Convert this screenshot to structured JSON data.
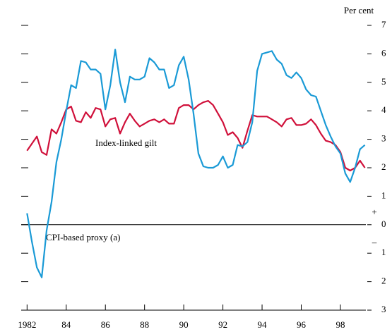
{
  "chart_data": {
    "type": "line",
    "y_axis_label": "Per cent",
    "annotations": [
      "+",
      "–"
    ],
    "xlim": [
      1981.7,
      1999.3
    ],
    "xticks": [
      {
        "value": 1982,
        "label": "1982"
      },
      {
        "value": 1984,
        "label": "84"
      },
      {
        "value": 1986,
        "label": "86"
      },
      {
        "value": 1988,
        "label": "88"
      },
      {
        "value": 1990,
        "label": "90"
      },
      {
        "value": 1992,
        "label": "92"
      },
      {
        "value": 1994,
        "label": "94"
      },
      {
        "value": 1996,
        "label": "96"
      },
      {
        "value": 1998,
        "label": "98"
      }
    ],
    "ylim": [
      -3,
      7
    ],
    "yticks": [
      7,
      6,
      5,
      4,
      3,
      2,
      1,
      0,
      {
        "value": -1,
        "label": "1"
      },
      {
        "value": -2,
        "label": "2"
      },
      {
        "value": -3,
        "label": "3"
      }
    ],
    "zero_line": true,
    "x": [
      1982,
      1982.25,
      1982.5,
      1982.75,
      1983,
      1983.25,
      1983.5,
      1983.75,
      1984,
      1984.25,
      1984.5,
      1984.75,
      1985,
      1985.25,
      1985.5,
      1985.75,
      1986,
      1986.25,
      1986.5,
      1986.75,
      1987,
      1987.25,
      1987.5,
      1987.75,
      1988,
      1988.25,
      1988.5,
      1988.75,
      1989,
      1989.25,
      1989.5,
      1989.75,
      1990,
      1990.25,
      1990.5,
      1990.75,
      1991,
      1991.25,
      1991.5,
      1991.75,
      1992,
      1992.25,
      1992.5,
      1992.75,
      1993,
      1993.25,
      1993.5,
      1993.75,
      1994,
      1994.25,
      1994.5,
      1994.75,
      1995,
      1995.25,
      1995.5,
      1995.75,
      1996,
      1996.25,
      1996.5,
      1996.75,
      1997,
      1997.25,
      1997.5,
      1997.75,
      1998,
      1998.25,
      1998.5,
      1998.75,
      1999,
      1999.25
    ],
    "series": [
      {
        "name": "Index-linked gilt",
        "color": "#d0103a",
        "values": [
          2.6,
          2.85,
          3.1,
          2.55,
          2.45,
          3.35,
          3.2,
          3.6,
          4.05,
          4.15,
          3.65,
          3.6,
          3.95,
          3.75,
          4.1,
          4.05,
          3.45,
          3.7,
          3.75,
          3.2,
          3.6,
          3.9,
          3.65,
          3.45,
          3.55,
          3.65,
          3.7,
          3.6,
          3.7,
          3.55,
          3.55,
          4.1,
          4.2,
          4.2,
          4.05,
          4.2,
          4.3,
          4.35,
          4.2,
          3.9,
          3.6,
          3.15,
          3.25,
          3.05,
          2.7,
          3.3,
          3.85,
          3.8,
          3.8,
          3.8,
          3.7,
          3.6,
          3.45,
          3.7,
          3.75,
          3.5,
          3.5,
          3.55,
          3.7,
          3.5,
          3.2,
          2.95,
          2.9,
          2.8,
          2.55,
          2.0,
          1.9,
          2.0,
          2.25,
          2.0
        ]
      },
      {
        "name": "CPI-based proxy (a)",
        "color": "#1a9ad6",
        "values": [
          0.4,
          -0.6,
          -1.5,
          -1.85,
          -0.2,
          0.8,
          2.2,
          3.0,
          4.0,
          4.9,
          4.8,
          5.75,
          5.7,
          5.45,
          5.45,
          5.3,
          4.05,
          4.9,
          6.15,
          5.0,
          4.3,
          5.2,
          5.1,
          5.1,
          5.2,
          5.85,
          5.7,
          5.45,
          5.45,
          4.8,
          4.9,
          5.6,
          5.9,
          5.1,
          3.9,
          2.5,
          2.05,
          2.0,
          2.0,
          2.1,
          2.4,
          2.0,
          2.1,
          2.8,
          2.75,
          2.9,
          3.6,
          5.4,
          6.0,
          6.05,
          6.1,
          5.8,
          5.65,
          5.25,
          5.15,
          5.35,
          5.15,
          4.75,
          4.55,
          4.5,
          4.0,
          3.5,
          3.1,
          2.75,
          2.5,
          1.8,
          1.5,
          2.0,
          2.65,
          2.8
        ]
      }
    ]
  }
}
